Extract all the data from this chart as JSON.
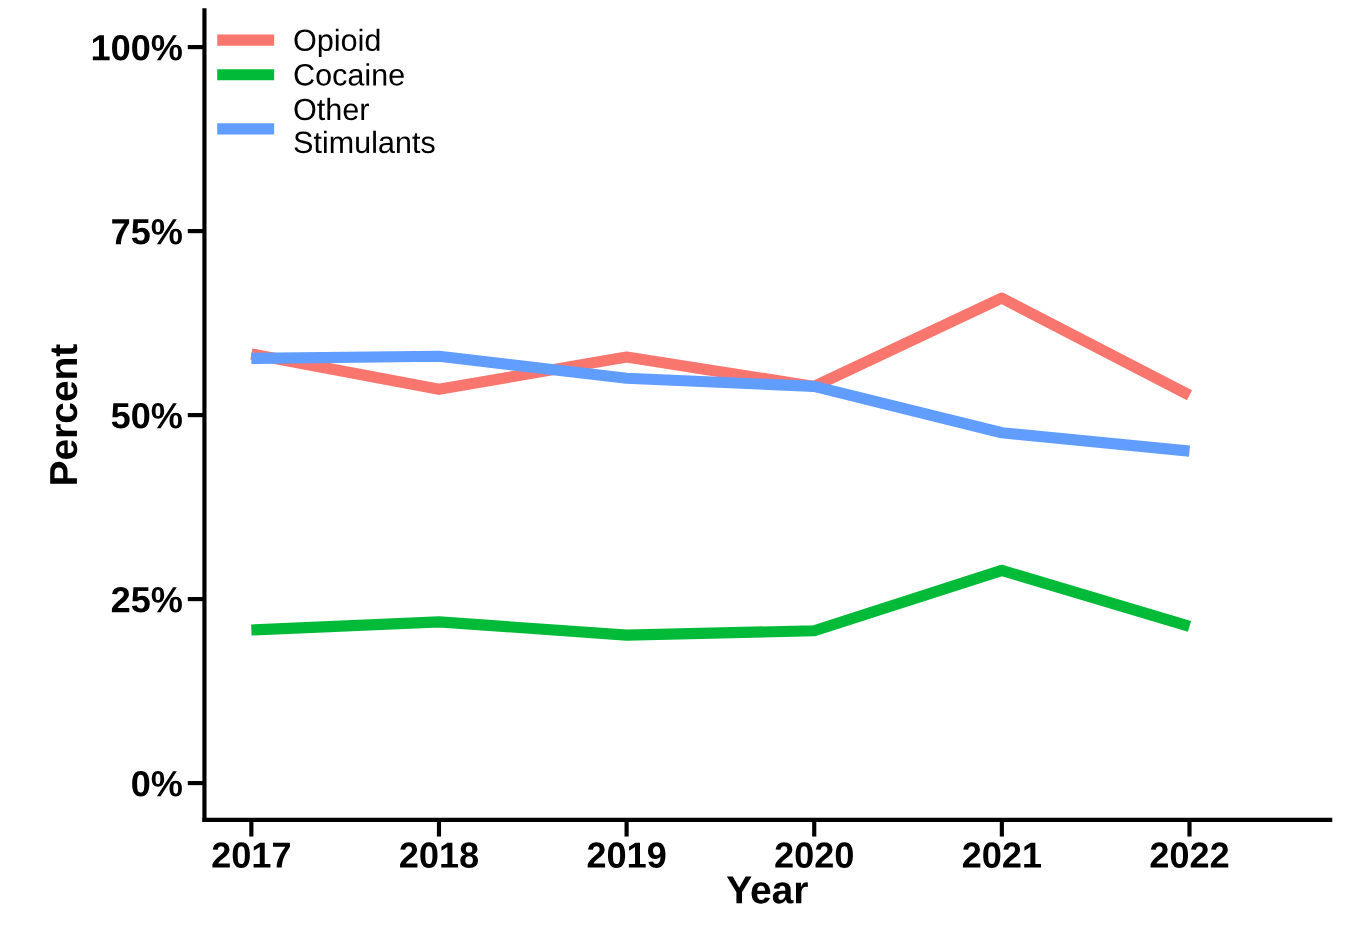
{
  "chart_data": {
    "type": "line",
    "xlabel": "Year",
    "ylabel": "Percent",
    "categories": [
      "2017",
      "2018",
      "2019",
      "2020",
      "2021",
      "2022"
    ],
    "series": [
      {
        "name": "Opioid",
        "color": "#f8766d",
        "values": [
          58.3,
          53.5,
          57.9,
          53.9,
          65.9,
          52.7
        ]
      },
      {
        "name": "Cocaine",
        "color": "#00ba38",
        "values": [
          20.8,
          21.9,
          20.1,
          20.7,
          28.9,
          21.3
        ]
      },
      {
        "name": "Other\nStimulants",
        "color": "#619cff",
        "values": [
          57.7,
          58.0,
          55.0,
          53.9,
          47.6,
          45.1
        ]
      }
    ],
    "ylim": [
      -5,
      105
    ],
    "yticks": [
      {
        "value": 0,
        "label": "0%"
      },
      {
        "value": 25,
        "label": "25%"
      },
      {
        "value": 50,
        "label": "50%"
      },
      {
        "value": 75,
        "label": "75%"
      },
      {
        "value": 100,
        "label": "100%"
      }
    ],
    "grid": false,
    "legend": "top left",
    "marker": "none",
    "line_style": "solid"
  }
}
